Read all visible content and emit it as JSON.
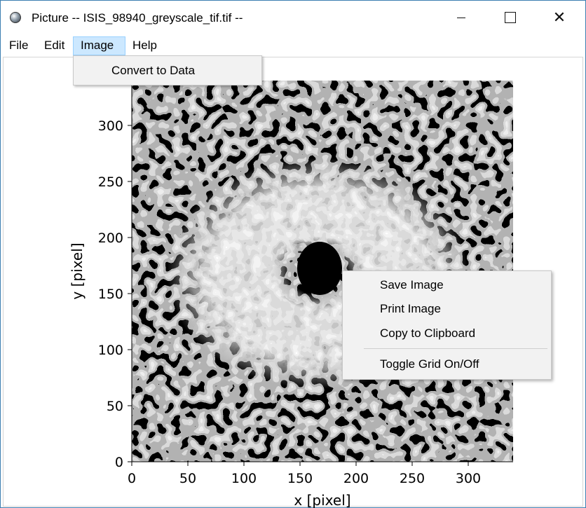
{
  "window": {
    "title": "Picture -- ISIS_98940_greyscale_tif.tif --",
    "min_glyph": "",
    "max_glyph": "",
    "close_glyph": "✕"
  },
  "menubar": {
    "file": "File",
    "edit": "Edit",
    "image": "Image",
    "help": "Help"
  },
  "image_menu": {
    "items": [
      "Convert to Data"
    ]
  },
  "context_menu": {
    "items": [
      "Save Image",
      "Print Image",
      "Copy to Clipboard",
      "Toggle Grid On/Off"
    ]
  },
  "plot": {
    "xlabel": "x [pixel]",
    "ylabel": "y [pixel]",
    "xlim": [
      0,
      340
    ],
    "ylim": [
      0,
      340
    ],
    "xticks": [
      0,
      50,
      100,
      150,
      200,
      250,
      300
    ],
    "yticks": [
      0,
      50,
      100,
      150,
      200,
      250,
      300
    ],
    "colormap": "greyscale",
    "grid": false
  }
}
